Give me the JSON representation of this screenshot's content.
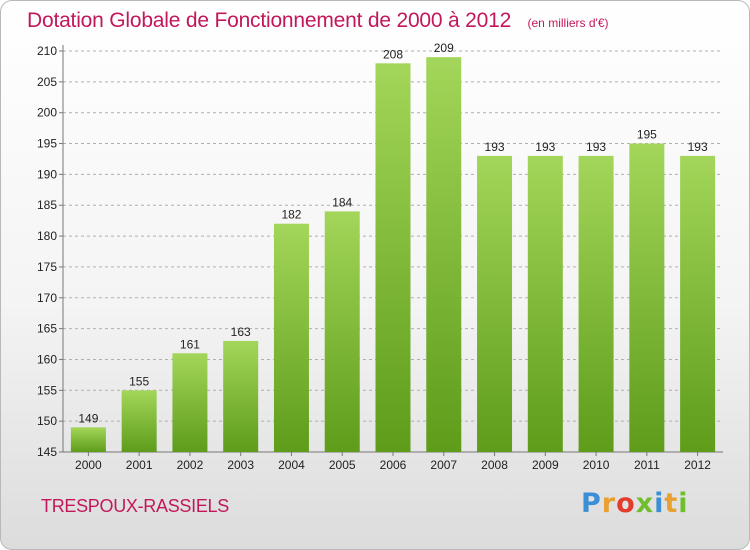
{
  "header": {
    "title": "Dotation Globale de Fonctionnement de 2000 à 2012",
    "unit": "(en milliers d'€)"
  },
  "footer": {
    "commune": "TRESPOUX-RASSIELS",
    "logo": {
      "letters": [
        "P",
        "r",
        "o",
        "x",
        "i",
        "t",
        "i"
      ],
      "colors": [
        "#3a8fd6",
        "#e8a030",
        "#e43b2c",
        "#6fbf2a",
        "#3a8fd6",
        "#e8a030",
        "#6fbf2a"
      ]
    }
  },
  "colors": {
    "bar_light": "#a3d65a",
    "bar_dark": "#5e9c1a",
    "grid": "#b0b0b0",
    "title": "#c2185b"
  },
  "chart_data": {
    "type": "bar",
    "categories": [
      "2000",
      "2001",
      "2002",
      "2003",
      "2004",
      "2005",
      "2006",
      "2007",
      "2008",
      "2009",
      "2010",
      "2011",
      "2012"
    ],
    "values": [
      149,
      155,
      161,
      163,
      182,
      184,
      208,
      209,
      193,
      193,
      193,
      195,
      193
    ],
    "data_labels": [
      "149",
      "155",
      "161",
      "163",
      "182",
      "184",
      "208",
      "209",
      "193",
      "193",
      "193",
      "195",
      "193"
    ],
    "yticks": [
      145,
      150,
      155,
      160,
      165,
      170,
      175,
      180,
      185,
      190,
      195,
      200,
      205,
      210
    ],
    "ylim": [
      145,
      210
    ],
    "grid": true,
    "title": "Dotation Globale de Fonctionnement de 2000 à 2012",
    "xlabel": "",
    "ylabel": ""
  }
}
